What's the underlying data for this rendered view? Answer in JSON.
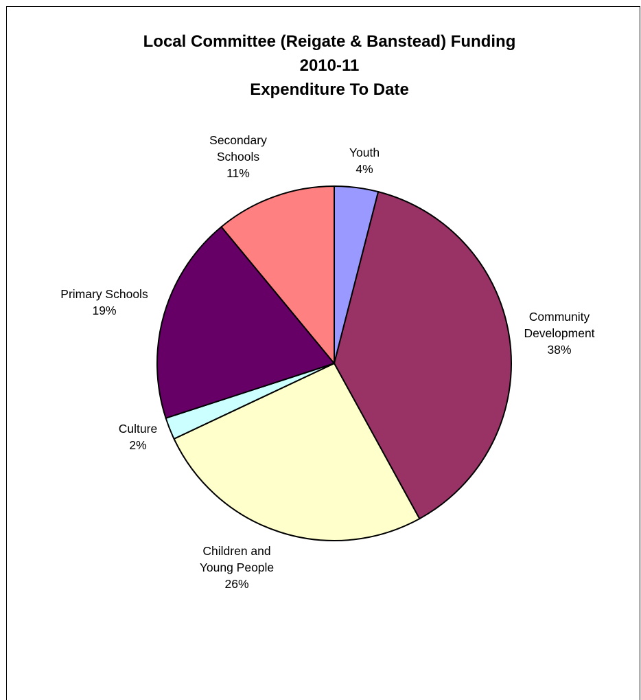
{
  "chart_data": {
    "type": "pie",
    "title": "Local Committee (Reigate & Banstead) Funding",
    "title_lines": [
      "Local Committee (Reigate & Banstead) Funding",
      "2010-11",
      "Expenditure To Date"
    ],
    "start_angle": "12 o'clock",
    "direction": "clockwise",
    "slices": [
      {
        "label_lines": [
          "Youth"
        ],
        "percent_label": "4%",
        "value": 4,
        "color": "#9999FF"
      },
      {
        "label_lines": [
          "Community",
          "Development"
        ],
        "percent_label": "38%",
        "value": 38,
        "color": "#993366"
      },
      {
        "label_lines": [
          "Children and",
          "Young People"
        ],
        "percent_label": "26%",
        "value": 26,
        "color": "#FFFFCC"
      },
      {
        "label_lines": [
          "Culture"
        ],
        "percent_label": "2%",
        "value": 2,
        "color": "#CCFFFF"
      },
      {
        "label_lines": [
          "Primary Schools"
        ],
        "percent_label": "19%",
        "value": 19,
        "color": "#660066"
      },
      {
        "label_lines": [
          "Secondary",
          "Schools"
        ],
        "percent_label": "11%",
        "value": 11,
        "color": "#FF8080"
      }
    ]
  }
}
